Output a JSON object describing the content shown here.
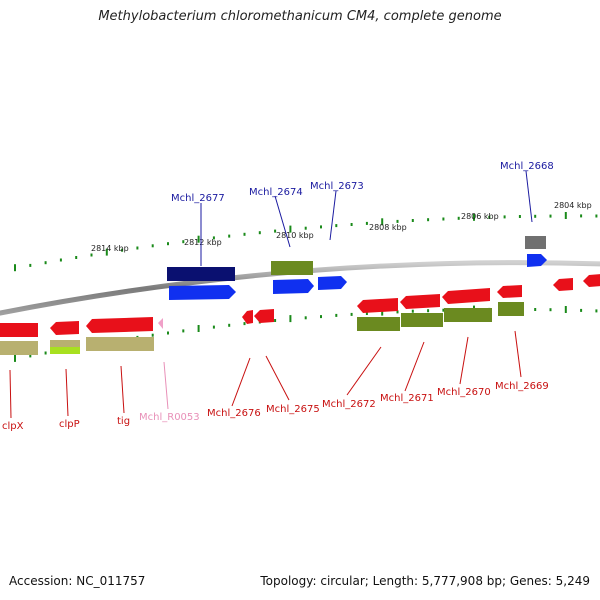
{
  "title": "Methylobacterium chloromethanicum CM4, complete genome",
  "footer": {
    "accession": "Accession: NC_011757",
    "summary": "Topology: circular; Length: 5,777,908 bp; Genes: 5,249"
  },
  "colors": {
    "backbone": "#8a8a8a",
    "gene_red": "#e8101a",
    "gene_blue": "#1030f0",
    "gene_navy": "#0a1070",
    "gene_olive": "#6b8a20",
    "gene_tan": "#b8b070",
    "gene_lime": "#a8e020",
    "gene_gray": "#707070",
    "gene_pink": "#f0a0c8",
    "label_blue": "#1a1aa0",
    "label_red": "#c81010",
    "label_pink": "#e890b8",
    "tick_green": "#1a8a1a"
  },
  "kbp_labels": [
    "2814 kbp",
    "2812 kbp",
    "2810 kbp",
    "2808 kbp",
    "2806 kbp",
    "2804 kbp"
  ],
  "top_labels": [
    "Mchl_2677",
    "Mchl_2674",
    "Mchl_2673",
    "Mchl_2668"
  ],
  "bottom_labels": [
    "clpX",
    "clpP",
    "tig",
    "Mchl_R0053",
    "Mchl_2676",
    "Mchl_2675",
    "Mchl_2672",
    "Mchl_2671",
    "Mchl_2670",
    "Mchl_2669"
  ]
}
